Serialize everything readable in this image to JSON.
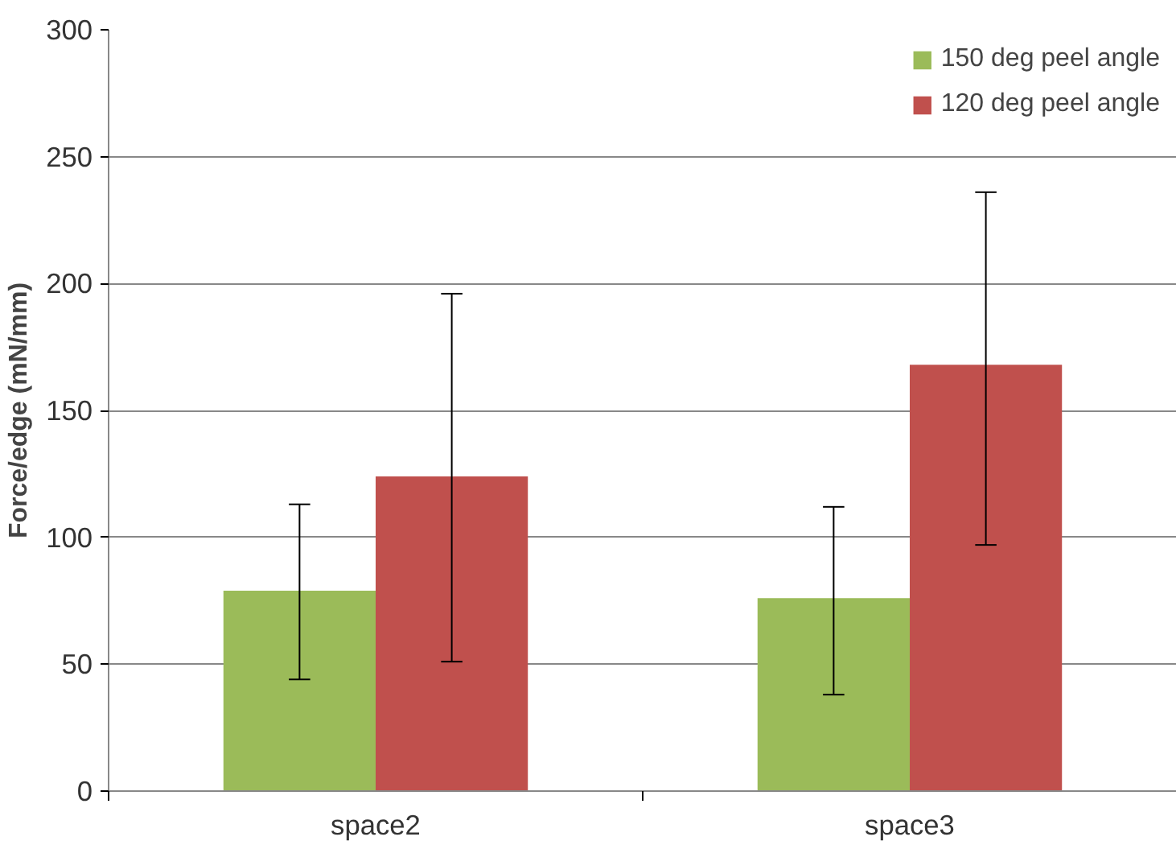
{
  "chart_data": {
    "type": "bar",
    "ylabel": "Force/edge (mN/mm)",
    "categories": [
      "space2",
      "space3"
    ],
    "series": [
      {
        "name": "150 deg peel angle",
        "color": "#9bbb59",
        "values": [
          79,
          76
        ],
        "errors": [
          [
            44,
            113
          ],
          [
            38,
            112
          ]
        ]
      },
      {
        "name": "120 deg peel angle",
        "color": "#c0504d",
        "values": [
          124,
          168
        ],
        "errors": [
          [
            51,
            196
          ],
          [
            97,
            236
          ]
        ]
      }
    ],
    "ylim": [
      0,
      300
    ],
    "yticks": [
      0,
      50,
      100,
      150,
      200,
      250,
      300
    ],
    "grid": "y",
    "legend": "top right"
  }
}
